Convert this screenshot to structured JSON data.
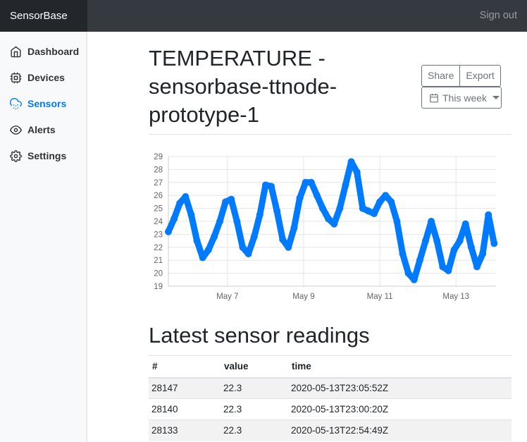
{
  "app": {
    "brand": "SensorBase",
    "signout": "Sign out"
  },
  "sidebar": {
    "items": [
      {
        "label": "Dashboard",
        "icon": "home-icon",
        "active": false
      },
      {
        "label": "Devices",
        "icon": "cpu-icon",
        "active": false
      },
      {
        "label": "Sensors",
        "icon": "cloud-drizzle-icon",
        "active": true
      },
      {
        "label": "Alerts",
        "icon": "eye-icon",
        "active": false
      },
      {
        "label": "Settings",
        "icon": "settings-icon",
        "active": false
      }
    ]
  },
  "main": {
    "title": "TEMPERATURE - sensorbase-ttnode-prototype-1",
    "share_label": "Share",
    "export_label": "Export",
    "range_label": "This week"
  },
  "chart_data": {
    "type": "scatter",
    "color": "#007bff",
    "xlabel": "",
    "ylabel": "",
    "ylim": [
      19,
      29
    ],
    "yticks": [
      19,
      20,
      21,
      22,
      23,
      24,
      25,
      26,
      27,
      28,
      29
    ],
    "xtick_labels": [
      "May 7",
      "May 9",
      "May 11",
      "May 13"
    ],
    "x_range_days": [
      "2020-05-06",
      "2020-05-14"
    ],
    "series": [
      {
        "x": [
          0.0,
          0.15,
          0.3,
          0.45,
          0.6,
          0.75,
          0.9,
          1.05,
          1.2,
          1.35,
          1.5,
          1.65,
          1.8,
          1.95,
          2.1,
          2.25,
          2.4,
          2.55,
          2.7,
          2.85,
          3.0,
          3.15,
          3.3,
          3.45,
          3.6,
          3.75,
          3.9,
          4.05,
          4.2,
          4.35,
          4.5,
          4.65,
          4.8,
          4.95,
          5.1,
          5.25,
          5.4,
          5.55,
          5.7,
          5.85,
          6.0,
          6.15,
          6.3,
          6.45,
          6.6,
          6.75,
          6.9,
          7.05,
          7.2,
          7.35,
          7.5,
          7.65,
          7.8,
          7.95,
          8.1,
          8.25,
          8.4,
          8.55
        ],
        "y": [
          23.2,
          24.2,
          25.4,
          25.9,
          24.5,
          22.5,
          21.2,
          21.8,
          22.8,
          24.0,
          25.5,
          25.7,
          24.0,
          22.0,
          21.5,
          22.8,
          24.5,
          26.8,
          26.7,
          24.8,
          22.6,
          22.0,
          23.5,
          25.8,
          27.0,
          27.0,
          26.0,
          25.0,
          24.2,
          23.8,
          25.0,
          26.8,
          28.6,
          27.8,
          25.0,
          24.8,
          24.6,
          25.5,
          26.0,
          25.5,
          24.0,
          21.5,
          20.0,
          19.5,
          21.0,
          22.5,
          24.0,
          22.5,
          20.5,
          20.2,
          21.8,
          22.5,
          23.8,
          22.0,
          20.5,
          21.5,
          24.5,
          22.3
        ]
      }
    ]
  },
  "readings": {
    "title": "Latest sensor readings",
    "columns": [
      "#",
      "value",
      "time"
    ],
    "rows": [
      [
        "28147",
        "22.3",
        "2020-05-13T23:05:52Z"
      ],
      [
        "28140",
        "22.3",
        "2020-05-13T23:00:20Z"
      ],
      [
        "28133",
        "22.3",
        "2020-05-13T22:54:49Z"
      ]
    ]
  }
}
